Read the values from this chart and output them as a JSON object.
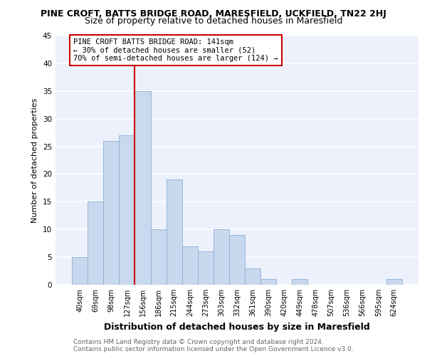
{
  "title": "PINE CROFT, BATTS BRIDGE ROAD, MARESFIELD, UCKFIELD, TN22 2HJ",
  "subtitle": "Size of property relative to detached houses in Maresfield",
  "xlabel": "Distribution of detached houses by size in Maresfield",
  "ylabel": "Number of detached properties",
  "categories": [
    "40sqm",
    "69sqm",
    "98sqm",
    "127sqm",
    "156sqm",
    "186sqm",
    "215sqm",
    "244sqm",
    "273sqm",
    "303sqm",
    "332sqm",
    "361sqm",
    "390sqm",
    "420sqm",
    "449sqm",
    "478sqm",
    "507sqm",
    "536sqm",
    "566sqm",
    "595sqm",
    "624sqm"
  ],
  "values": [
    5,
    15,
    26,
    27,
    35,
    10,
    19,
    7,
    6,
    10,
    9,
    3,
    1,
    0,
    1,
    0,
    0,
    0,
    0,
    0,
    1
  ],
  "bar_color": "#c8d8ee",
  "bar_edge_color": "#8aaed4",
  "vline_color": "#cc0000",
  "vline_x_index": 3.5,
  "annotation_lines": [
    "PINE CROFT BATTS BRIDGE ROAD: 141sqm",
    "← 30% of detached houses are smaller (52)",
    "70% of semi-detached houses are larger (124) →"
  ],
  "ylim": [
    0,
    45
  ],
  "yticks": [
    0,
    5,
    10,
    15,
    20,
    25,
    30,
    35,
    40,
    45
  ],
  "footer_line1": "Contains HM Land Registry data © Crown copyright and database right 2024.",
  "footer_line2": "Contains public sector information licensed under the Open Government Licence v3.0.",
  "bg_color": "#edf1fc",
  "title_fontsize": 9,
  "subtitle_fontsize": 9,
  "xlabel_fontsize": 9,
  "ylabel_fontsize": 8,
  "xtick_fontsize": 7,
  "ytick_fontsize": 7.5,
  "footer_fontsize": 6.5,
  "ann_fontsize": 7.5
}
